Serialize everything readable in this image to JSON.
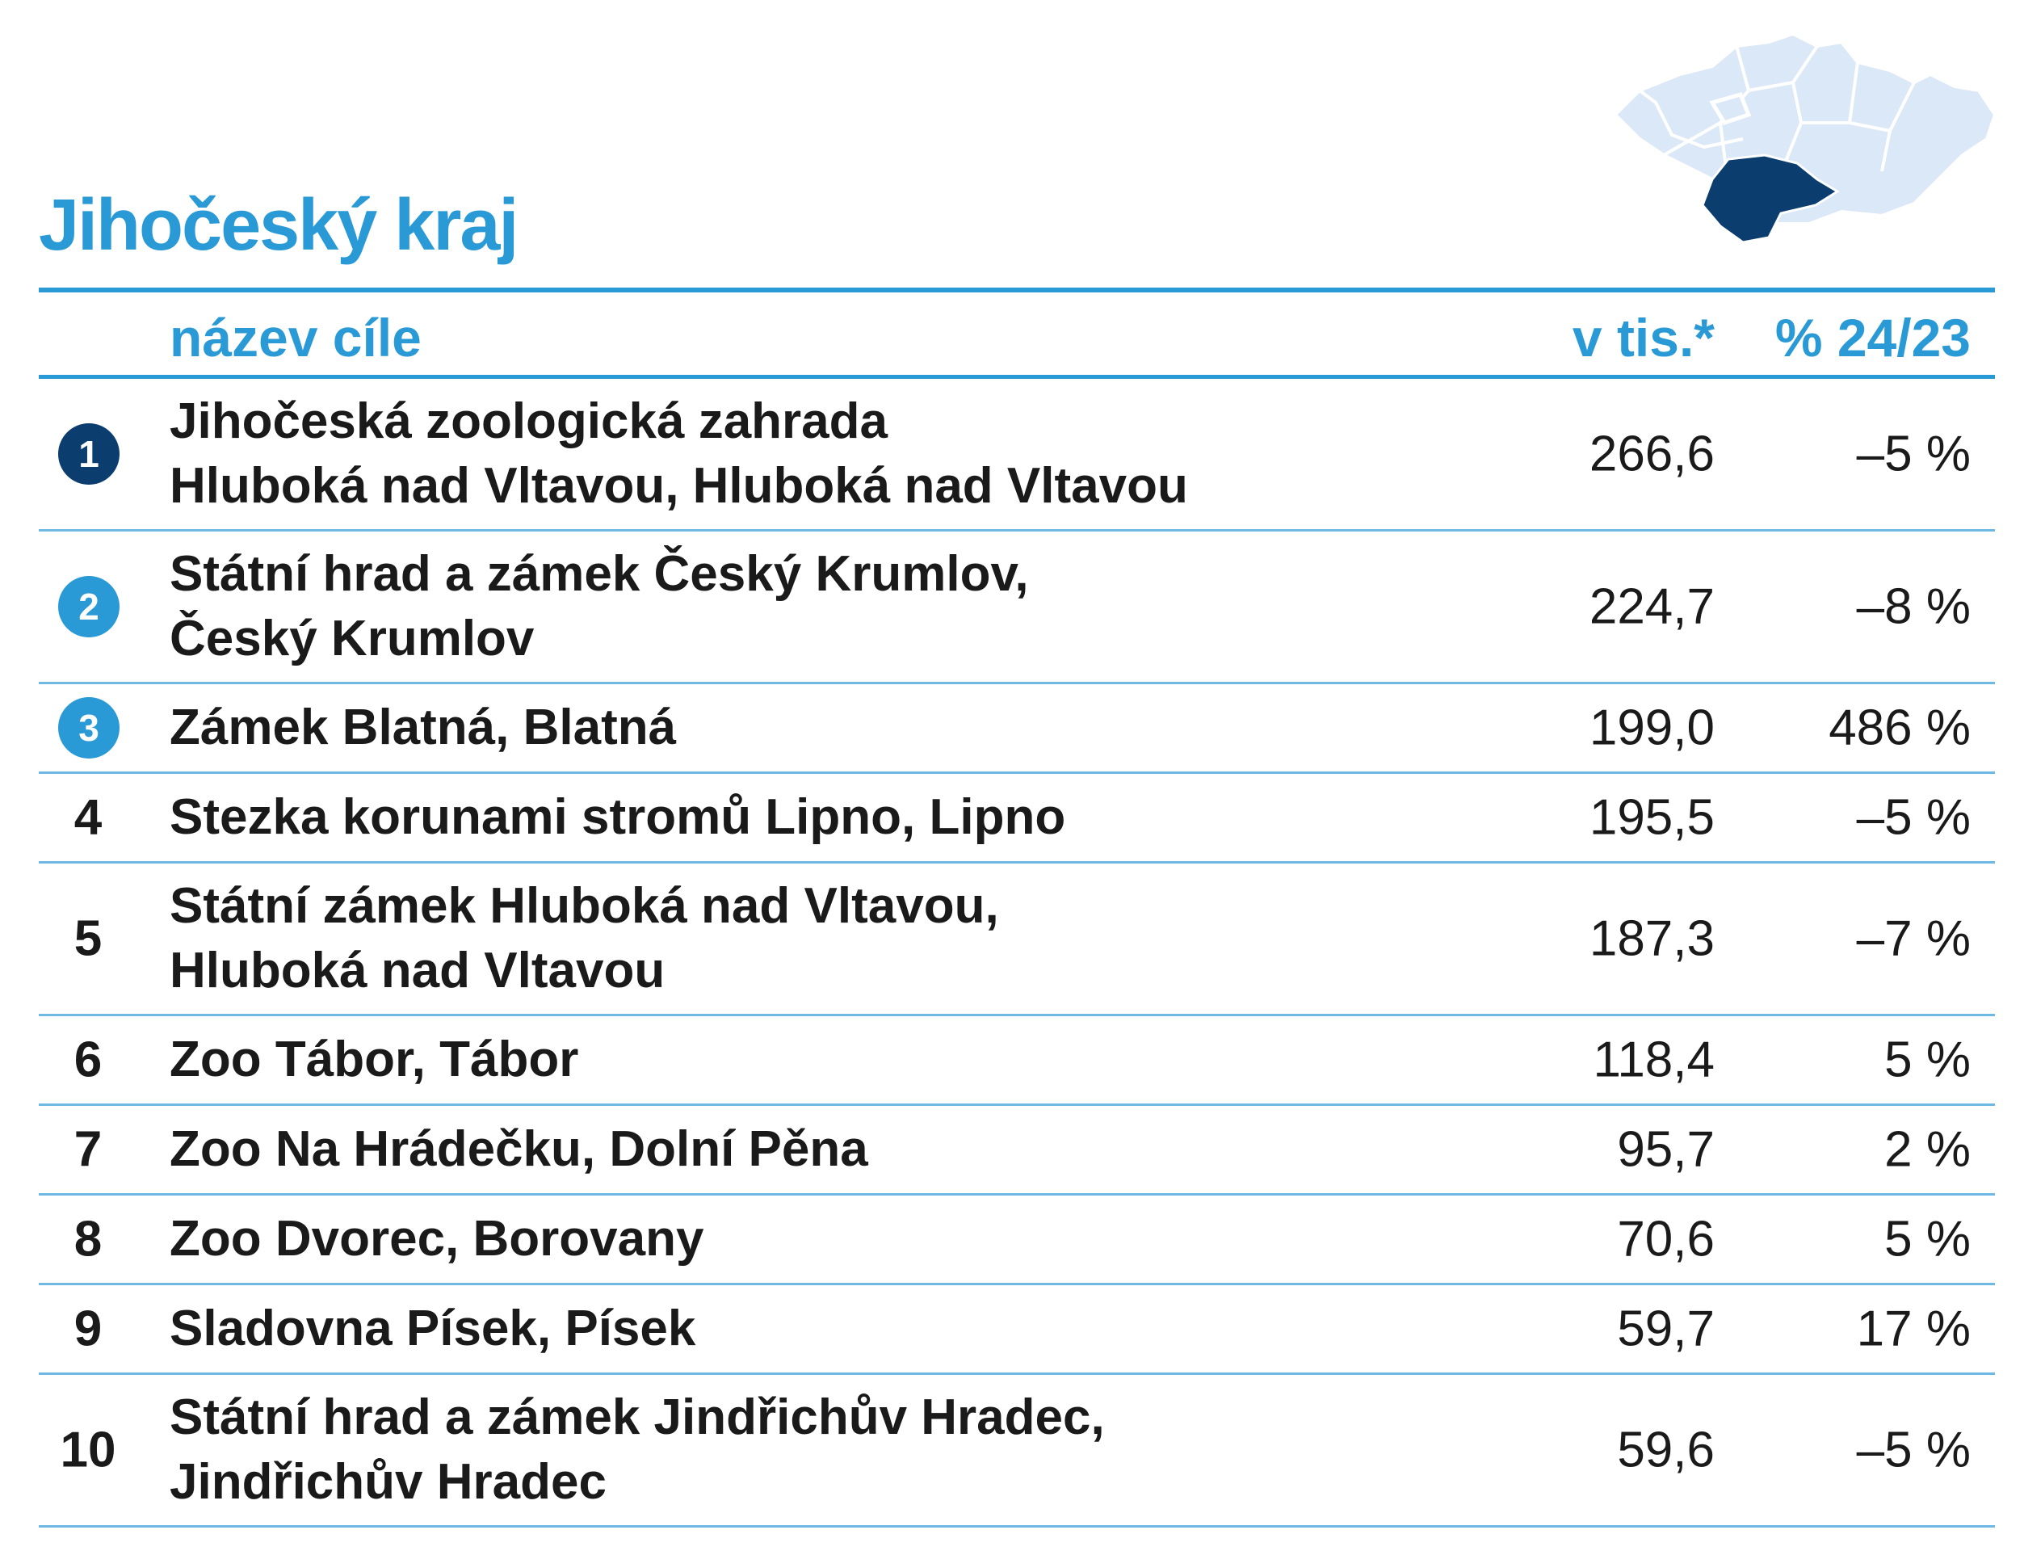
{
  "title": "Jihočeský kraj",
  "colors": {
    "accent": "#2a9ad6",
    "dark_badge": "#0b3e6e",
    "map_region": "#dbe8f7",
    "map_highlight": "#0b3e6e"
  },
  "map_icon": "czech-regions-map-icon",
  "header": {
    "name": "název cíle",
    "value": "v tis.*",
    "change": "% 24/23"
  },
  "rows": [
    {
      "rank": "1",
      "name_lines": [
        "Jihočeská zoologická zahrada",
        "Hluboká nad Vltavou, Hluboká nad Vltavou"
      ],
      "value": "266,6",
      "change": "–5 %"
    },
    {
      "rank": "2",
      "name_lines": [
        "Státní hrad a zámek Český Krumlov,",
        "Český Krumlov"
      ],
      "value": "224,7",
      "change": "–8 %"
    },
    {
      "rank": "3",
      "name_lines": [
        "Zámek Blatná, Blatná"
      ],
      "value": "199,0",
      "change": "486 %"
    },
    {
      "rank": "4",
      "name_lines": [
        "Stezka korunami stromů Lipno, Lipno"
      ],
      "value": "195,5",
      "change": "–5 %"
    },
    {
      "rank": "5",
      "name_lines": [
        "Státní zámek Hluboká nad Vltavou,",
        "Hluboká nad Vltavou"
      ],
      "value": "187,3",
      "change": "–7 %"
    },
    {
      "rank": "6",
      "name_lines": [
        "Zoo Tábor, Tábor"
      ],
      "value": "118,4",
      "change": "5 %"
    },
    {
      "rank": "7",
      "name_lines": [
        "Zoo Na Hrádečku, Dolní Pěna"
      ],
      "value": "95,7",
      "change": "2 %"
    },
    {
      "rank": "8",
      "name_lines": [
        "Zoo Dvorec, Borovany"
      ],
      "value": "70,6",
      "change": "5 %"
    },
    {
      "rank": "9",
      "name_lines": [
        "Sladovna Písek, Písek"
      ],
      "value": "59,7",
      "change": "17 %"
    },
    {
      "rank": "10",
      "name_lines": [
        "Státní hrad a zámek Jindřichův Hradec,",
        "Jindřichův Hradec"
      ],
      "value": "59,6",
      "change": "–5 %"
    }
  ]
}
